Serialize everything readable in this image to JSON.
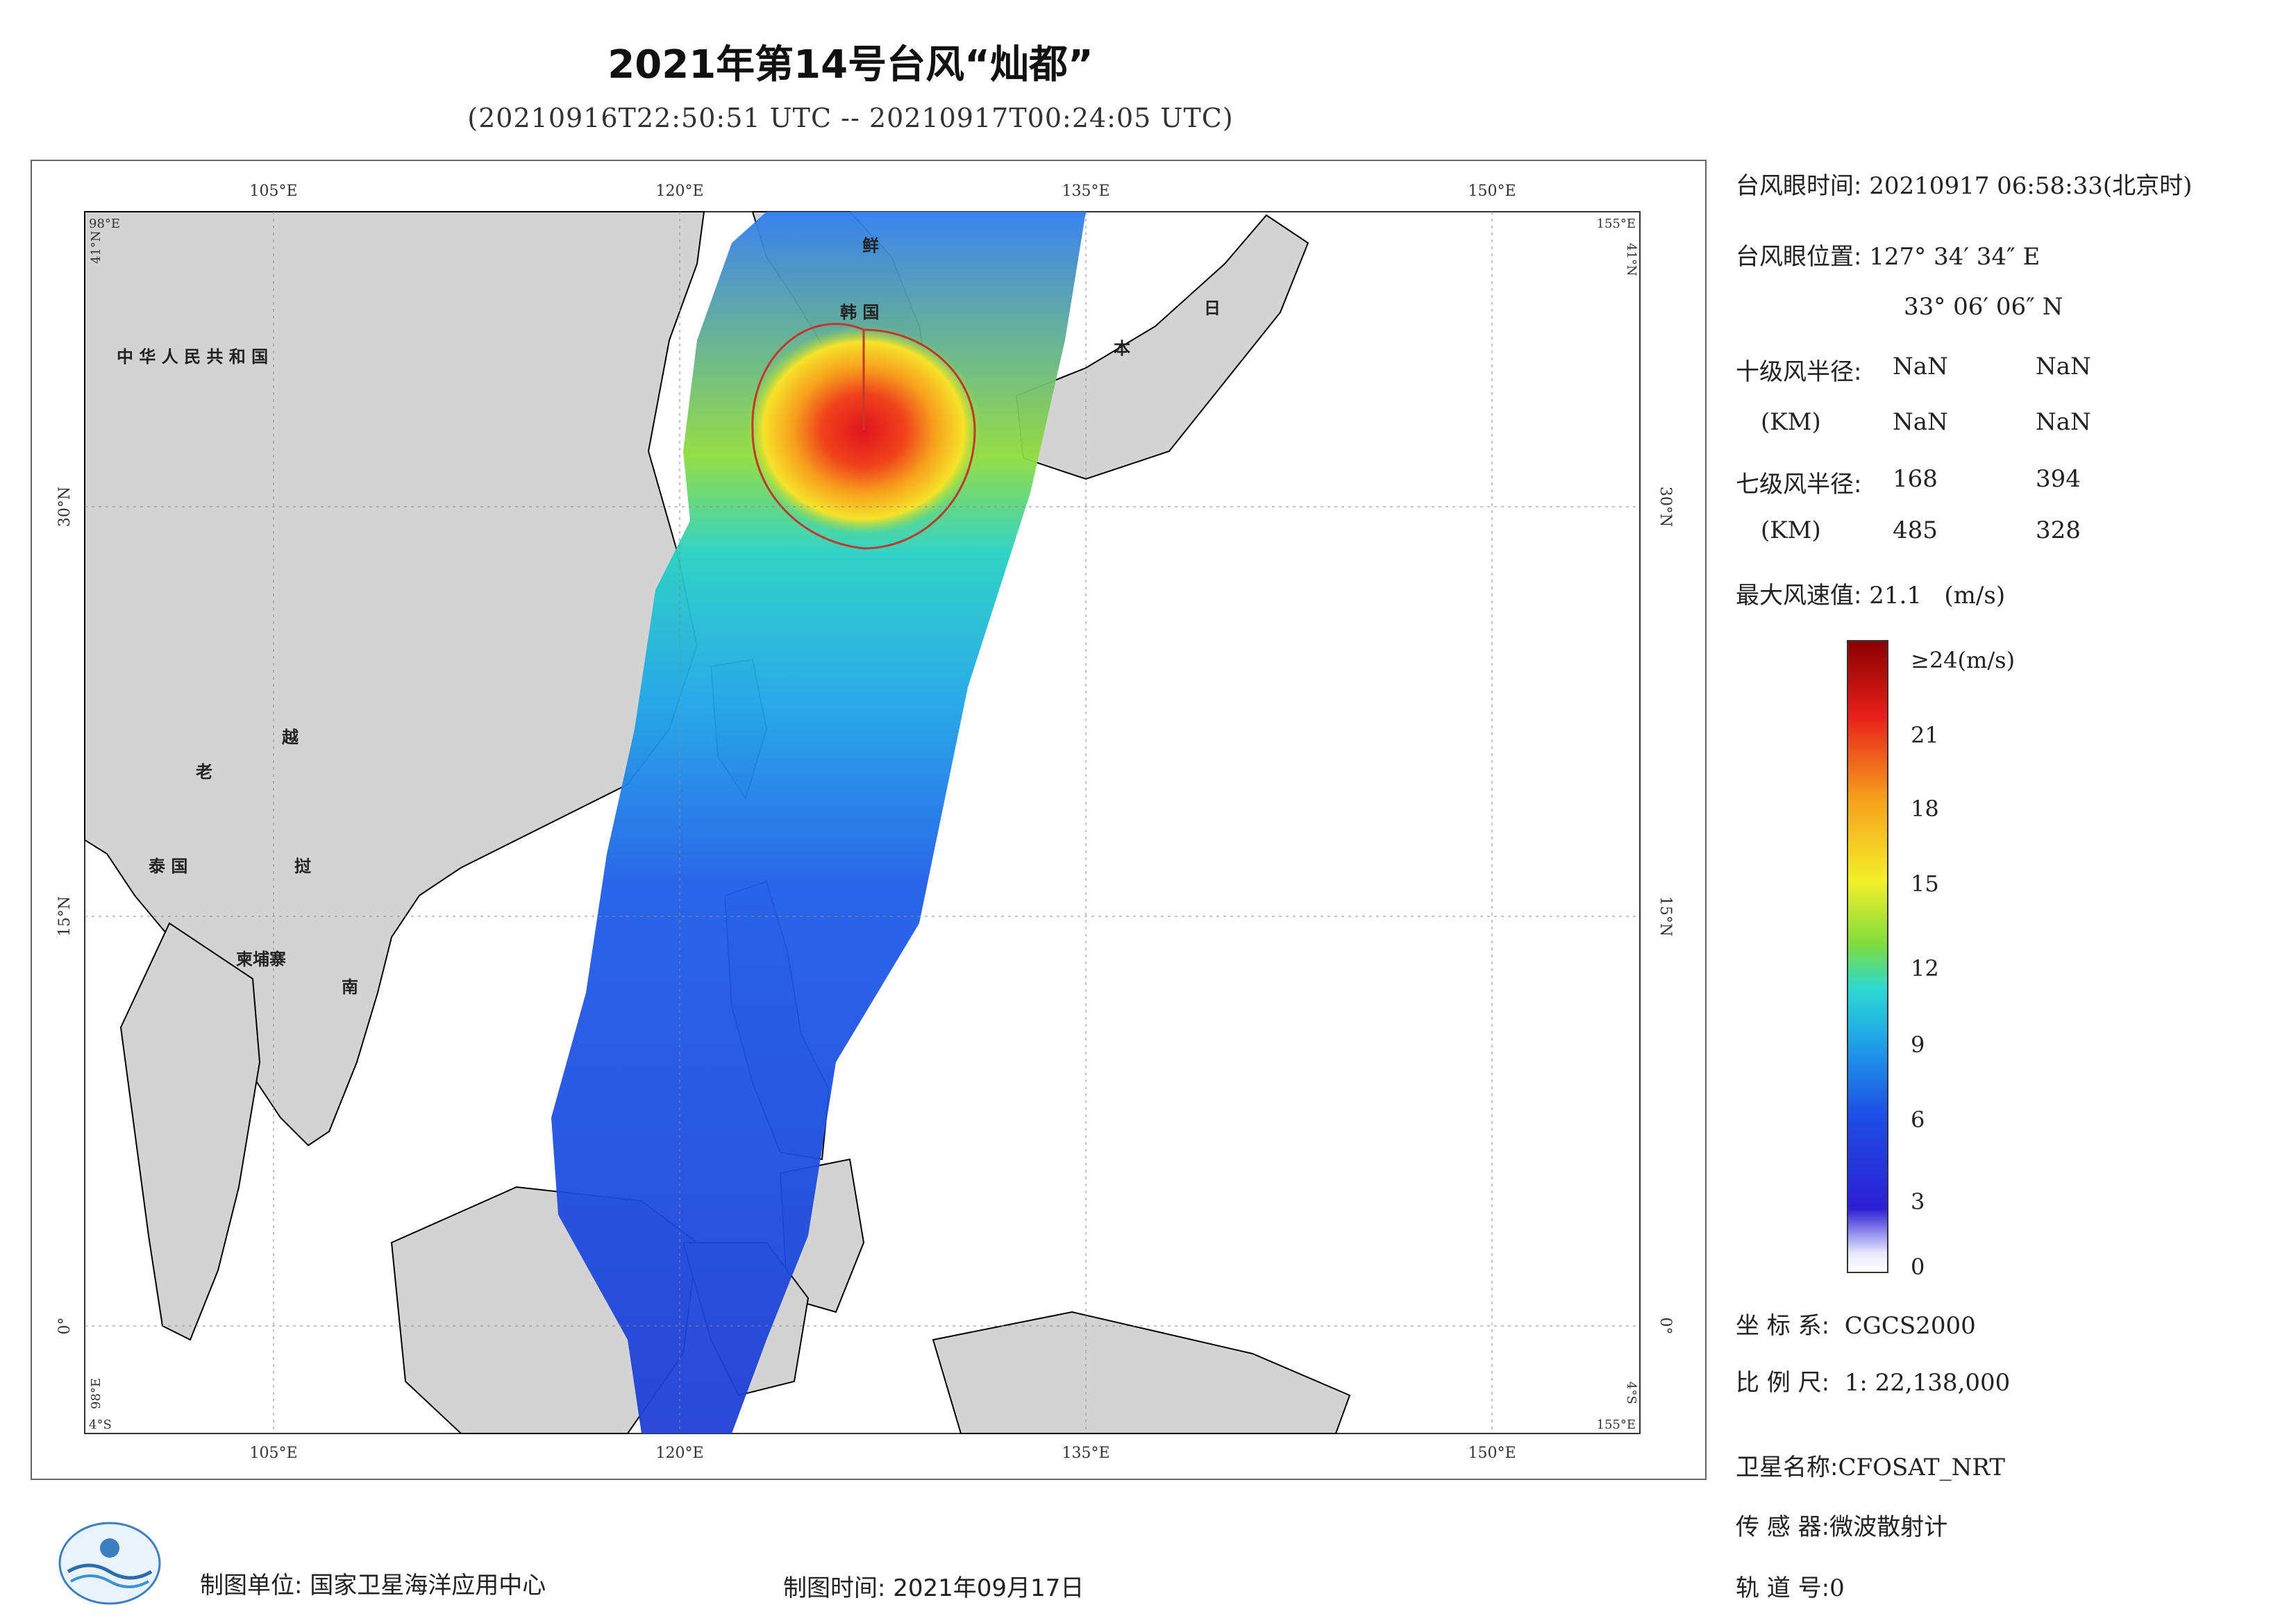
{
  "title": "2021年第14号台风“灿都”",
  "subtitle": "(20210916T22:50:51 UTC -- 20210917T00:24:05 UTC)",
  "map": {
    "lon_ticks": [
      "105°E",
      "120°E",
      "135°E",
      "150°E"
    ],
    "lat_ticks": [
      "30°N",
      "15°N",
      "0°"
    ],
    "corner_labels": {
      "tl_lon": "98°E",
      "tl_lat": "41°N",
      "tr_lon": "155°E",
      "tr_lat": "41°N",
      "bl_lon": "98°E",
      "bl_lat": "4°S",
      "br_lon": "155°E",
      "br_lat": "4°S"
    },
    "regions": [
      "中 华 人 民 共 和 国",
      "鲜",
      "韩 国",
      "日",
      "本",
      "老",
      "越",
      "泰 国",
      "挝",
      "柬埔寨",
      "南"
    ],
    "colors": {
      "land": "#d3d3d3",
      "sea": "#ffffff",
      "coast": "#000000",
      "radius_circle": "#c0392b"
    }
  },
  "info": {
    "eye_time_label": "台风眼时间:",
    "eye_time_value": "20210917 06:58:33(北京时)",
    "eye_pos_label": "台风眼位置:",
    "eye_pos_lon": "127° 34′ 34″ E",
    "eye_pos_lat": "33° 06′ 06″ N",
    "r10_label": "十级风半径:",
    "r10_unit": "(KM)",
    "r10_values": [
      "NaN",
      "NaN",
      "NaN",
      "NaN"
    ],
    "r7_label": "七级风半径:",
    "r7_unit": "(KM)",
    "r7_values": [
      "168",
      "394",
      "485",
      "328"
    ],
    "max_wind_label": "最大风速值:",
    "max_wind_value": "21.1",
    "max_wind_unit": "(m/s)"
  },
  "colorbar": {
    "ticks": [
      "≥24(m/s)",
      "21",
      "18",
      "15",
      "12",
      "9",
      "6",
      "3",
      "0"
    ],
    "range": [
      0,
      24
    ]
  },
  "meta": {
    "crs_label": "坐 标 系:",
    "crs_value": "CGCS2000",
    "scale_label": "比 例 尺:",
    "scale_value": "1: 22,138,000",
    "satellite_label": "卫星名称:",
    "satellite_value": "CFOSAT_NRT",
    "sensor_label": "传 感 器:",
    "sensor_value": "微波散射计",
    "orbit_label": "轨 道 号:",
    "orbit_value": "0"
  },
  "footer": {
    "unit": "制图单位: 国家卫星海洋应用中心",
    "time": "制图时间: 2021年09月17日"
  }
}
